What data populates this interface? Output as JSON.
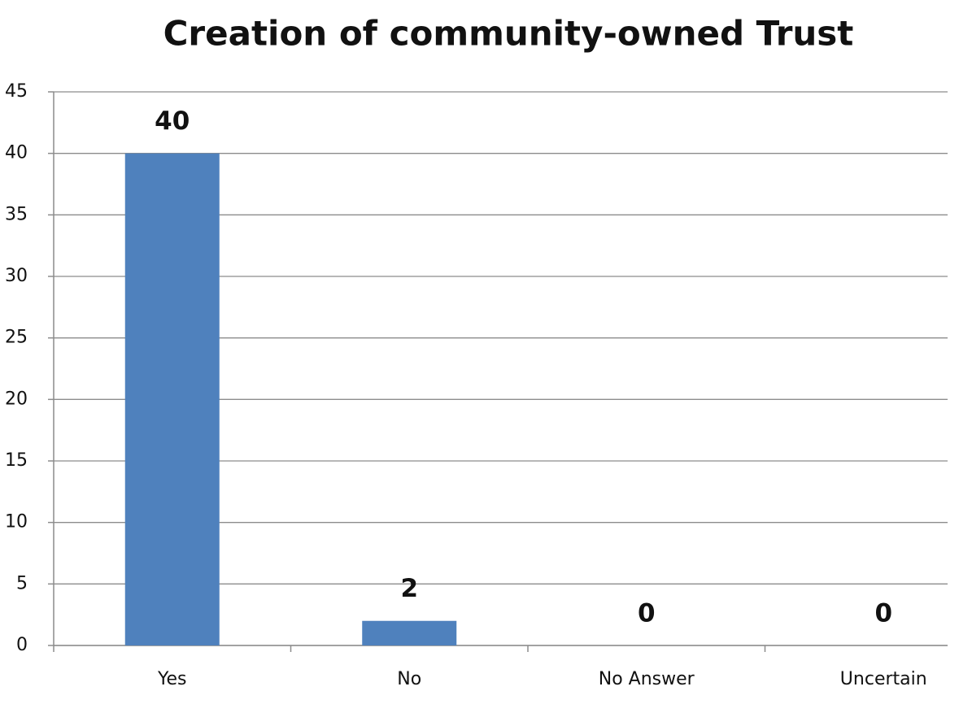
{
  "chart_data": {
    "type": "bar",
    "title": "Creation of community-owned Trust",
    "categories": [
      "Yes",
      "No",
      "No Answer",
      "Uncertain"
    ],
    "values": [
      40,
      2,
      0,
      0
    ],
    "color": "#4f81bd",
    "ylim": [
      0,
      45
    ],
    "yticks": [
      0,
      5,
      10,
      15,
      20,
      25,
      30,
      35,
      40,
      45
    ],
    "grid": true
  }
}
